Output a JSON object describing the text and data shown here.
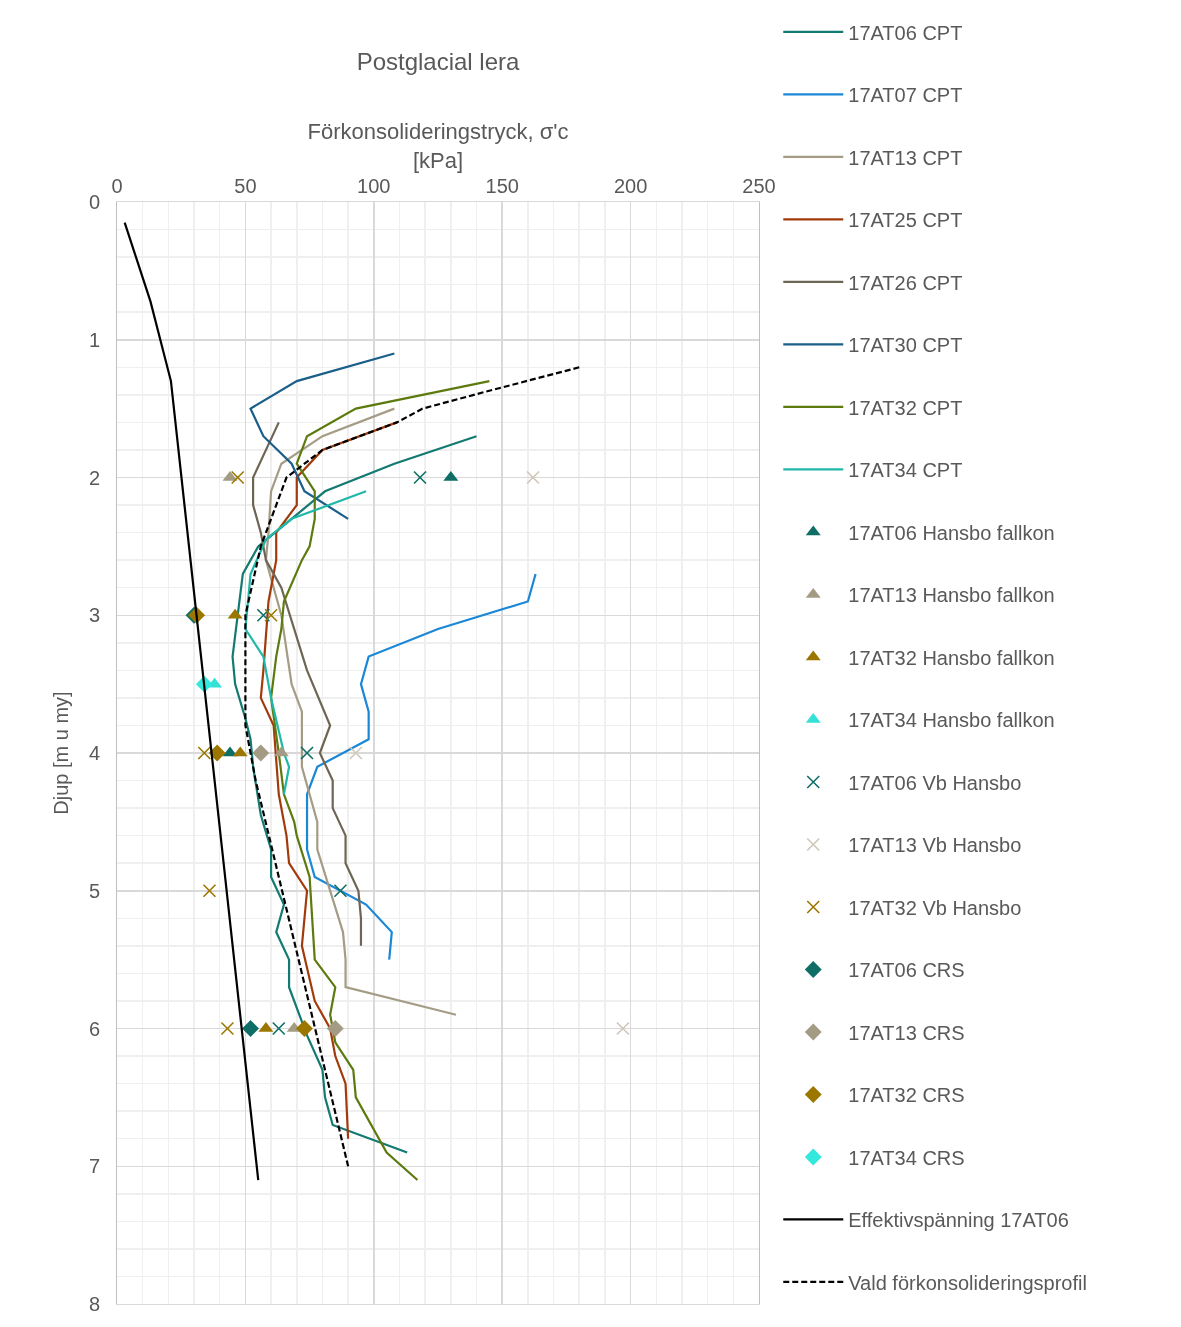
{
  "chart_data": {
    "type": "line",
    "title": "Postglacial lera",
    "xlabel": "Förkonsolideringstryck, σ'c\n[kPa]",
    "ylabel": "Djup [m u my]",
    "xlim": [
      0,
      250
    ],
    "xticks": [
      0,
      50,
      100,
      150,
      200,
      250
    ],
    "ylim": [
      8,
      0
    ],
    "yticks": [
      0,
      1,
      2,
      3,
      4,
      5,
      6,
      7,
      8
    ],
    "grid": true,
    "legend": "right",
    "marker": "none",
    "line_style": "solid",
    "series": [
      {
        "name": "17AT06 CPT",
        "color": "#137a72",
        "x": [
          140,
          108,
          81,
          68,
          55,
          49,
          45,
          46,
          50,
          52,
          53,
          56,
          60,
          60,
          65,
          62,
          67,
          67,
          74,
          80,
          81,
          84,
          113
        ],
        "values": [
          1.7,
          1.9,
          2.1,
          2.3,
          2.5,
          2.7,
          3.3,
          3.5,
          3.75,
          3.9,
          4.1,
          4.45,
          4.7,
          4.9,
          5.1,
          5.3,
          5.5,
          5.7,
          6.05,
          6.3,
          6.5,
          6.7,
          6.9
        ]
      },
      {
        "name": "17AT07 CPT",
        "color": "#1b87d6",
        "x": [
          163,
          160,
          125,
          98,
          95,
          98,
          98,
          78,
          74,
          74,
          77,
          97,
          107,
          106
        ],
        "values": [
          2.7,
          2.9,
          3.1,
          3.3,
          3.5,
          3.7,
          3.9,
          4.1,
          4.3,
          4.7,
          4.9,
          5.1,
          5.3,
          5.5
        ]
      },
      {
        "name": "17AT13 CPT",
        "color": "#a59c86",
        "x": [
          108,
          80,
          64,
          60,
          59,
          58,
          64,
          68,
          72,
          72,
          78,
          78,
          88,
          89,
          89,
          132
        ],
        "values": [
          1.5,
          1.7,
          1.9,
          2.1,
          2.4,
          2.6,
          3.0,
          3.5,
          3.7,
          4.1,
          4.5,
          4.7,
          5.3,
          5.5,
          5.7,
          5.9
        ]
      },
      {
        "name": "17AT25 CPT",
        "color": "#a23b0c",
        "x": [
          109,
          80,
          70,
          70,
          62,
          62,
          59,
          57,
          56,
          61,
          63,
          66,
          67,
          74,
          72,
          77,
          83,
          85,
          89,
          90
        ],
        "values": [
          1.6,
          1.8,
          2.0,
          2.2,
          2.4,
          2.6,
          2.9,
          3.4,
          3.6,
          3.8,
          4.3,
          4.6,
          4.8,
          5.0,
          5.4,
          5.8,
          6.0,
          6.2,
          6.4,
          6.8
        ]
      },
      {
        "name": "17AT26 CPT",
        "color": "#6e6655",
        "x": [
          63,
          53,
          53,
          56,
          58,
          64,
          74,
          83,
          79,
          84,
          84,
          89,
          89,
          94,
          95,
          95
        ],
        "values": [
          1.6,
          2.0,
          2.2,
          2.4,
          2.6,
          2.8,
          3.4,
          3.8,
          4.0,
          4.2,
          4.4,
          4.6,
          4.8,
          5.0,
          5.2,
          5.4
        ]
      },
      {
        "name": "17AT30 CPT",
        "color": "#1a5e8a",
        "x": [
          108,
          70,
          52,
          57,
          68,
          73,
          90
        ],
        "values": [
          1.1,
          1.3,
          1.5,
          1.7,
          1.9,
          2.1,
          2.3
        ]
      },
      {
        "name": "17AT32 CPT",
        "color": "#5d7a0e",
        "x": [
          145,
          93,
          74,
          70,
          77,
          77,
          75,
          72,
          65,
          64,
          62,
          60,
          63,
          65,
          69,
          70,
          75,
          77,
          85,
          83,
          85,
          92,
          93,
          105,
          117
        ],
        "values": [
          1.3,
          1.5,
          1.7,
          1.9,
          2.1,
          2.3,
          2.5,
          2.6,
          2.9,
          3.1,
          3.3,
          3.6,
          4.0,
          4.3,
          4.5,
          4.6,
          4.9,
          5.5,
          5.7,
          5.9,
          6.1,
          6.3,
          6.5,
          6.9,
          7.1
        ]
      },
      {
        "name": "17AT34 CPT",
        "color": "#1fb8a8",
        "x": [
          97,
          68,
          58,
          52,
          50,
          57,
          60,
          65,
          67,
          65
        ],
        "values": [
          2.1,
          2.3,
          2.45,
          2.7,
          3.1,
          3.3,
          3.6,
          4.0,
          4.1,
          4.3
        ]
      },
      {
        "name": "17AT06 Hansbo fallkon",
        "type": "scatter",
        "marker": "triangle",
        "color": "#0e6e66",
        "x": [
          130,
          44
        ],
        "values": [
          2,
          4
        ]
      },
      {
        "name": "17AT13 Hansbo fallkon",
        "type": "scatter",
        "marker": "triangle",
        "color": "#a39b83",
        "x": [
          44,
          64,
          69
        ],
        "values": [
          2,
          4,
          6
        ]
      },
      {
        "name": "17AT32 Hansbo fallkon",
        "type": "scatter",
        "marker": "triangle",
        "color": "#9c7700",
        "x": [
          46,
          48,
          58
        ],
        "values": [
          3,
          4,
          6
        ]
      },
      {
        "name": "17AT34 Hansbo fallkon",
        "type": "scatter",
        "marker": "triangle",
        "color": "#33e1d6",
        "x": [
          38
        ],
        "values": [
          3.5
        ]
      },
      {
        "name": "17AT06 Vb Hansbo",
        "type": "scatter",
        "marker": "cross",
        "color": "#0e6e66",
        "x": [
          118,
          57,
          74,
          87,
          63
        ],
        "values": [
          2,
          3,
          4,
          5,
          6
        ]
      },
      {
        "name": "17AT13 Vb Hansbo",
        "type": "scatter",
        "marker": "cross",
        "color": "#cfc7b8",
        "x": [
          162,
          93,
          197
        ],
        "values": [
          2,
          4,
          6
        ]
      },
      {
        "name": "17AT32 Vb Hansbo",
        "type": "scatter",
        "marker": "cross",
        "color": "#9c7700",
        "x": [
          47,
          60,
          34,
          36,
          43
        ],
        "values": [
          2,
          3,
          4,
          5,
          6
        ]
      },
      {
        "name": "17AT06 CRS",
        "type": "scatter",
        "marker": "diamond",
        "color": "#0e6e66",
        "x": [
          30,
          52
        ],
        "values": [
          3,
          6
        ]
      },
      {
        "name": "17AT13 CRS",
        "type": "scatter",
        "marker": "diamond",
        "color": "#a39b83",
        "x": [
          56,
          85
        ],
        "values": [
          4,
          6
        ]
      },
      {
        "name": "17AT32 CRS",
        "type": "scatter",
        "marker": "diamond",
        "color": "#9c7700",
        "x": [
          31,
          39,
          73
        ],
        "values": [
          3,
          4,
          6
        ]
      },
      {
        "name": "17AT34 CRS",
        "type": "scatter",
        "marker": "diamond",
        "color": "#33e8dc",
        "x": [
          34
        ],
        "values": [
          3.5
        ]
      },
      {
        "name": "Effektivspänning 17AT06",
        "color": "#000000",
        "x": [
          3,
          13,
          21,
          55
        ],
        "values": [
          0.15,
          0.72,
          1.3,
          7.1
        ]
      },
      {
        "name": "Vald förkonsolideringsprofil",
        "color": "#000000",
        "line_style": "dashed",
        "x": [
          180,
          143,
          119,
          109,
          80,
          66,
          62,
          56,
          50,
          50,
          54,
          90
        ],
        "values": [
          1.2,
          1.38,
          1.5,
          1.6,
          1.8,
          2.0,
          2.2,
          2.5,
          3.0,
          3.8,
          4.2,
          7.0
        ]
      }
    ]
  }
}
